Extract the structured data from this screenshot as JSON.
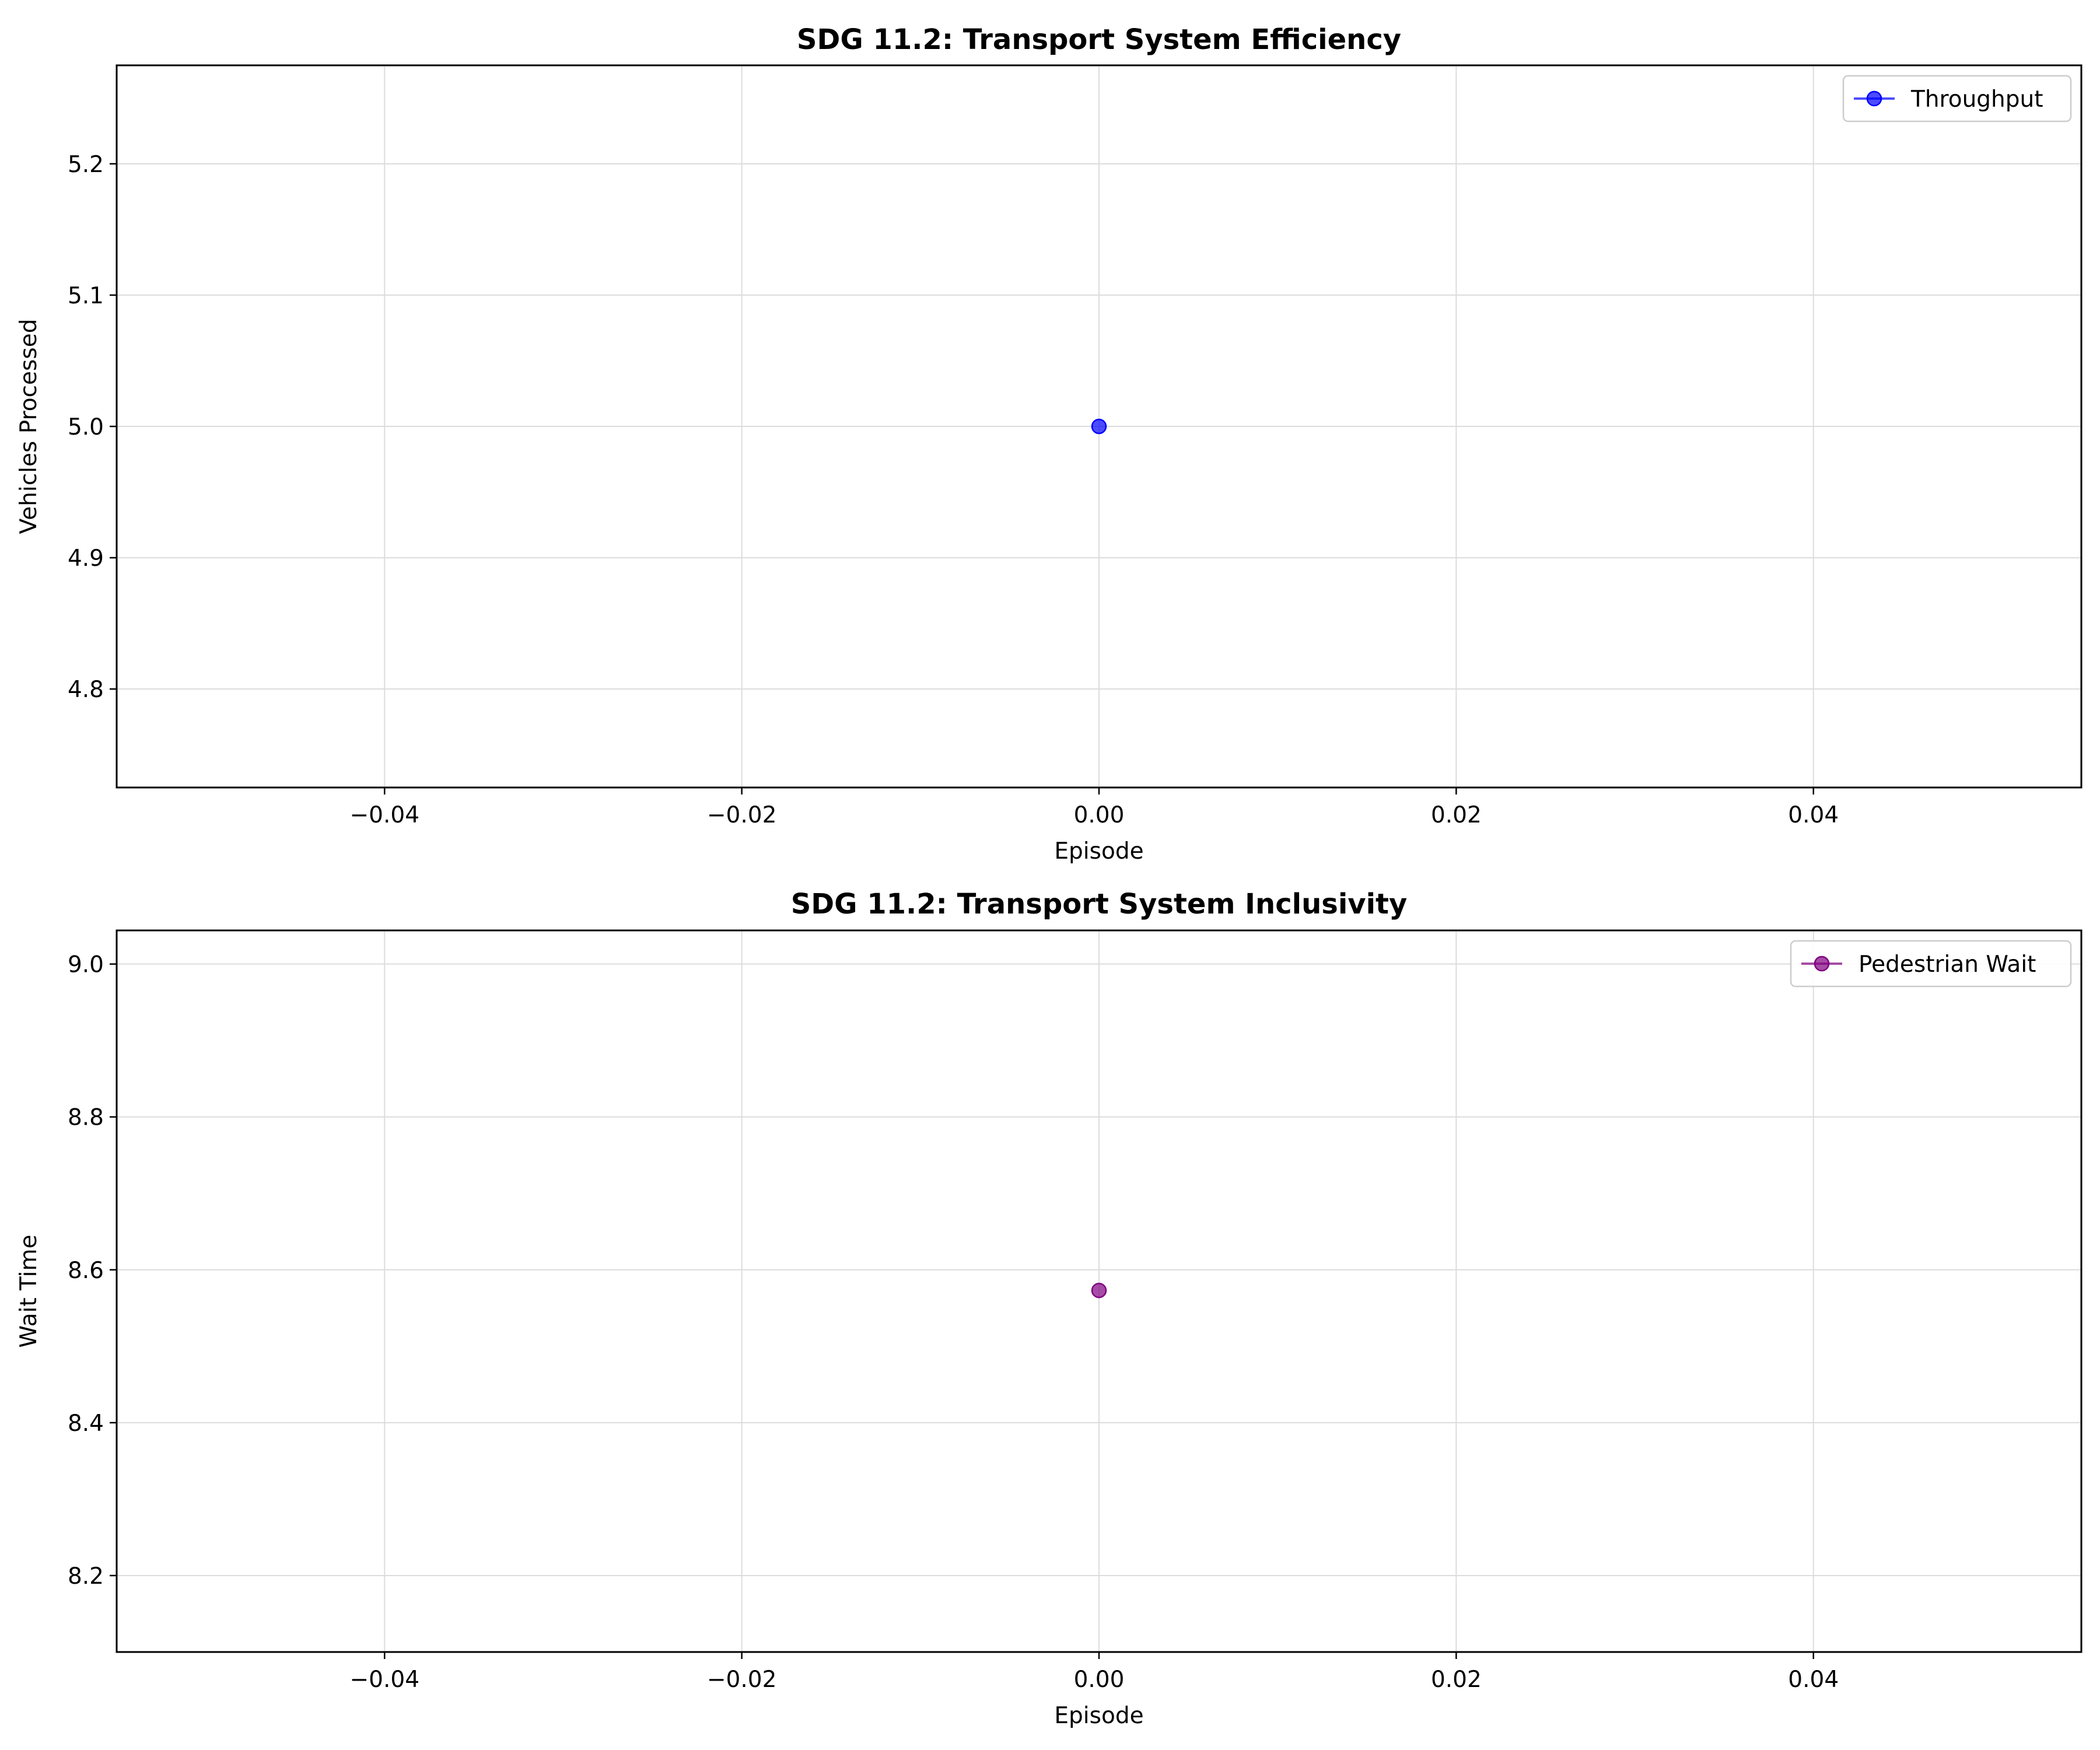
{
  "chart_data": [
    {
      "type": "line",
      "title": "SDG 11.2: Transport System Efficiency",
      "xlabel": "Episode",
      "ylabel": "Vehicles Processed",
      "xlim": [
        -0.055,
        0.055
      ],
      "ylim": [
        4.725,
        5.275
      ],
      "xticks": [
        -0.04,
        -0.02,
        0.0,
        0.02,
        0.04
      ],
      "xtick_labels": [
        "−0.04",
        "−0.02",
        "0.00",
        "0.02",
        "0.04"
      ],
      "yticks": [
        4.8,
        4.9,
        5.0,
        5.1,
        5.2
      ],
      "ytick_labels": [
        "4.8",
        "4.9",
        "5.0",
        "5.1",
        "5.2"
      ],
      "grid": true,
      "legend": "upper right",
      "series": [
        {
          "name": "Throughput",
          "color": "#0000ff",
          "marker": "circle",
          "x": [
            0
          ],
          "y": [
            5.0
          ]
        }
      ]
    },
    {
      "type": "line",
      "title": "SDG 11.2: Transport System Inclusivity",
      "xlabel": "Episode",
      "ylabel": "Wait Time",
      "xlim": [
        -0.055,
        0.055
      ],
      "ylim": [
        8.1,
        9.044
      ],
      "xticks": [
        -0.04,
        -0.02,
        0.0,
        0.02,
        0.04
      ],
      "xtick_labels": [
        "−0.04",
        "−0.02",
        "0.00",
        "0.02",
        "0.04"
      ],
      "yticks": [
        8.2,
        8.4,
        8.6,
        8.8,
        9.0
      ],
      "ytick_labels": [
        "8.2",
        "8.4",
        "8.6",
        "8.8",
        "9.0"
      ],
      "grid": true,
      "legend": "upper right",
      "series": [
        {
          "name": "Pedestrian Wait",
          "color": "#800080",
          "marker": "circle",
          "x": [
            0
          ],
          "y": [
            8.573
          ]
        }
      ]
    }
  ]
}
